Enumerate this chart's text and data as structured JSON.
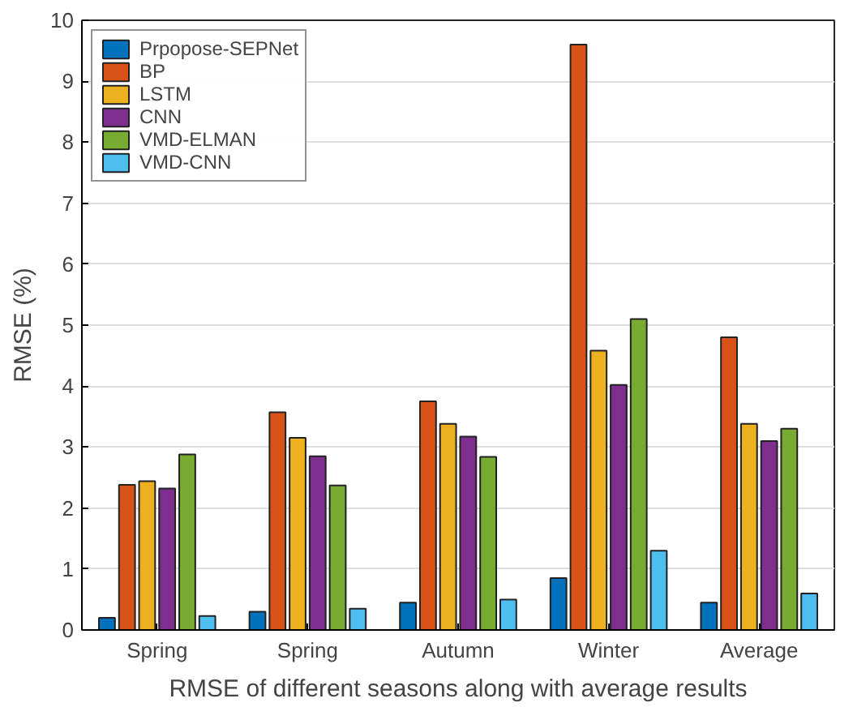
{
  "chart_data": {
    "type": "bar",
    "xlabel": "RMSE of different seasons along with average results",
    "ylabel": "RMSE (%)",
    "categories": [
      "Spring",
      "Spring",
      "Autumn",
      "Winter",
      "Average"
    ],
    "series": [
      {
        "name": "Prpopose-SEPNet",
        "color": "#0072bd",
        "values": [
          0.2,
          0.3,
          0.45,
          0.85,
          0.45
        ]
      },
      {
        "name": "BP",
        "color": "#d95319",
        "values": [
          2.38,
          3.57,
          3.75,
          9.6,
          4.8
        ]
      },
      {
        "name": "LSTM",
        "color": "#edb120",
        "values": [
          2.44,
          3.15,
          3.38,
          4.58,
          3.38
        ]
      },
      {
        "name": "CNN",
        "color": "#7e2f8e",
        "values": [
          2.32,
          2.85,
          3.17,
          4.02,
          3.1
        ]
      },
      {
        "name": "VMD-ELMAN",
        "color": "#77ac30",
        "values": [
          2.88,
          2.37,
          2.84,
          5.1,
          3.3
        ]
      },
      {
        "name": "VMD-CNN",
        "color": "#4dbeee",
        "values": [
          0.23,
          0.35,
          0.5,
          1.3,
          0.6
        ]
      }
    ],
    "ylim": [
      0,
      10
    ],
    "yticks": [
      0,
      1,
      2,
      3,
      4,
      5,
      6,
      7,
      8,
      9,
      10
    ],
    "grid": "y",
    "legend": "top left"
  }
}
